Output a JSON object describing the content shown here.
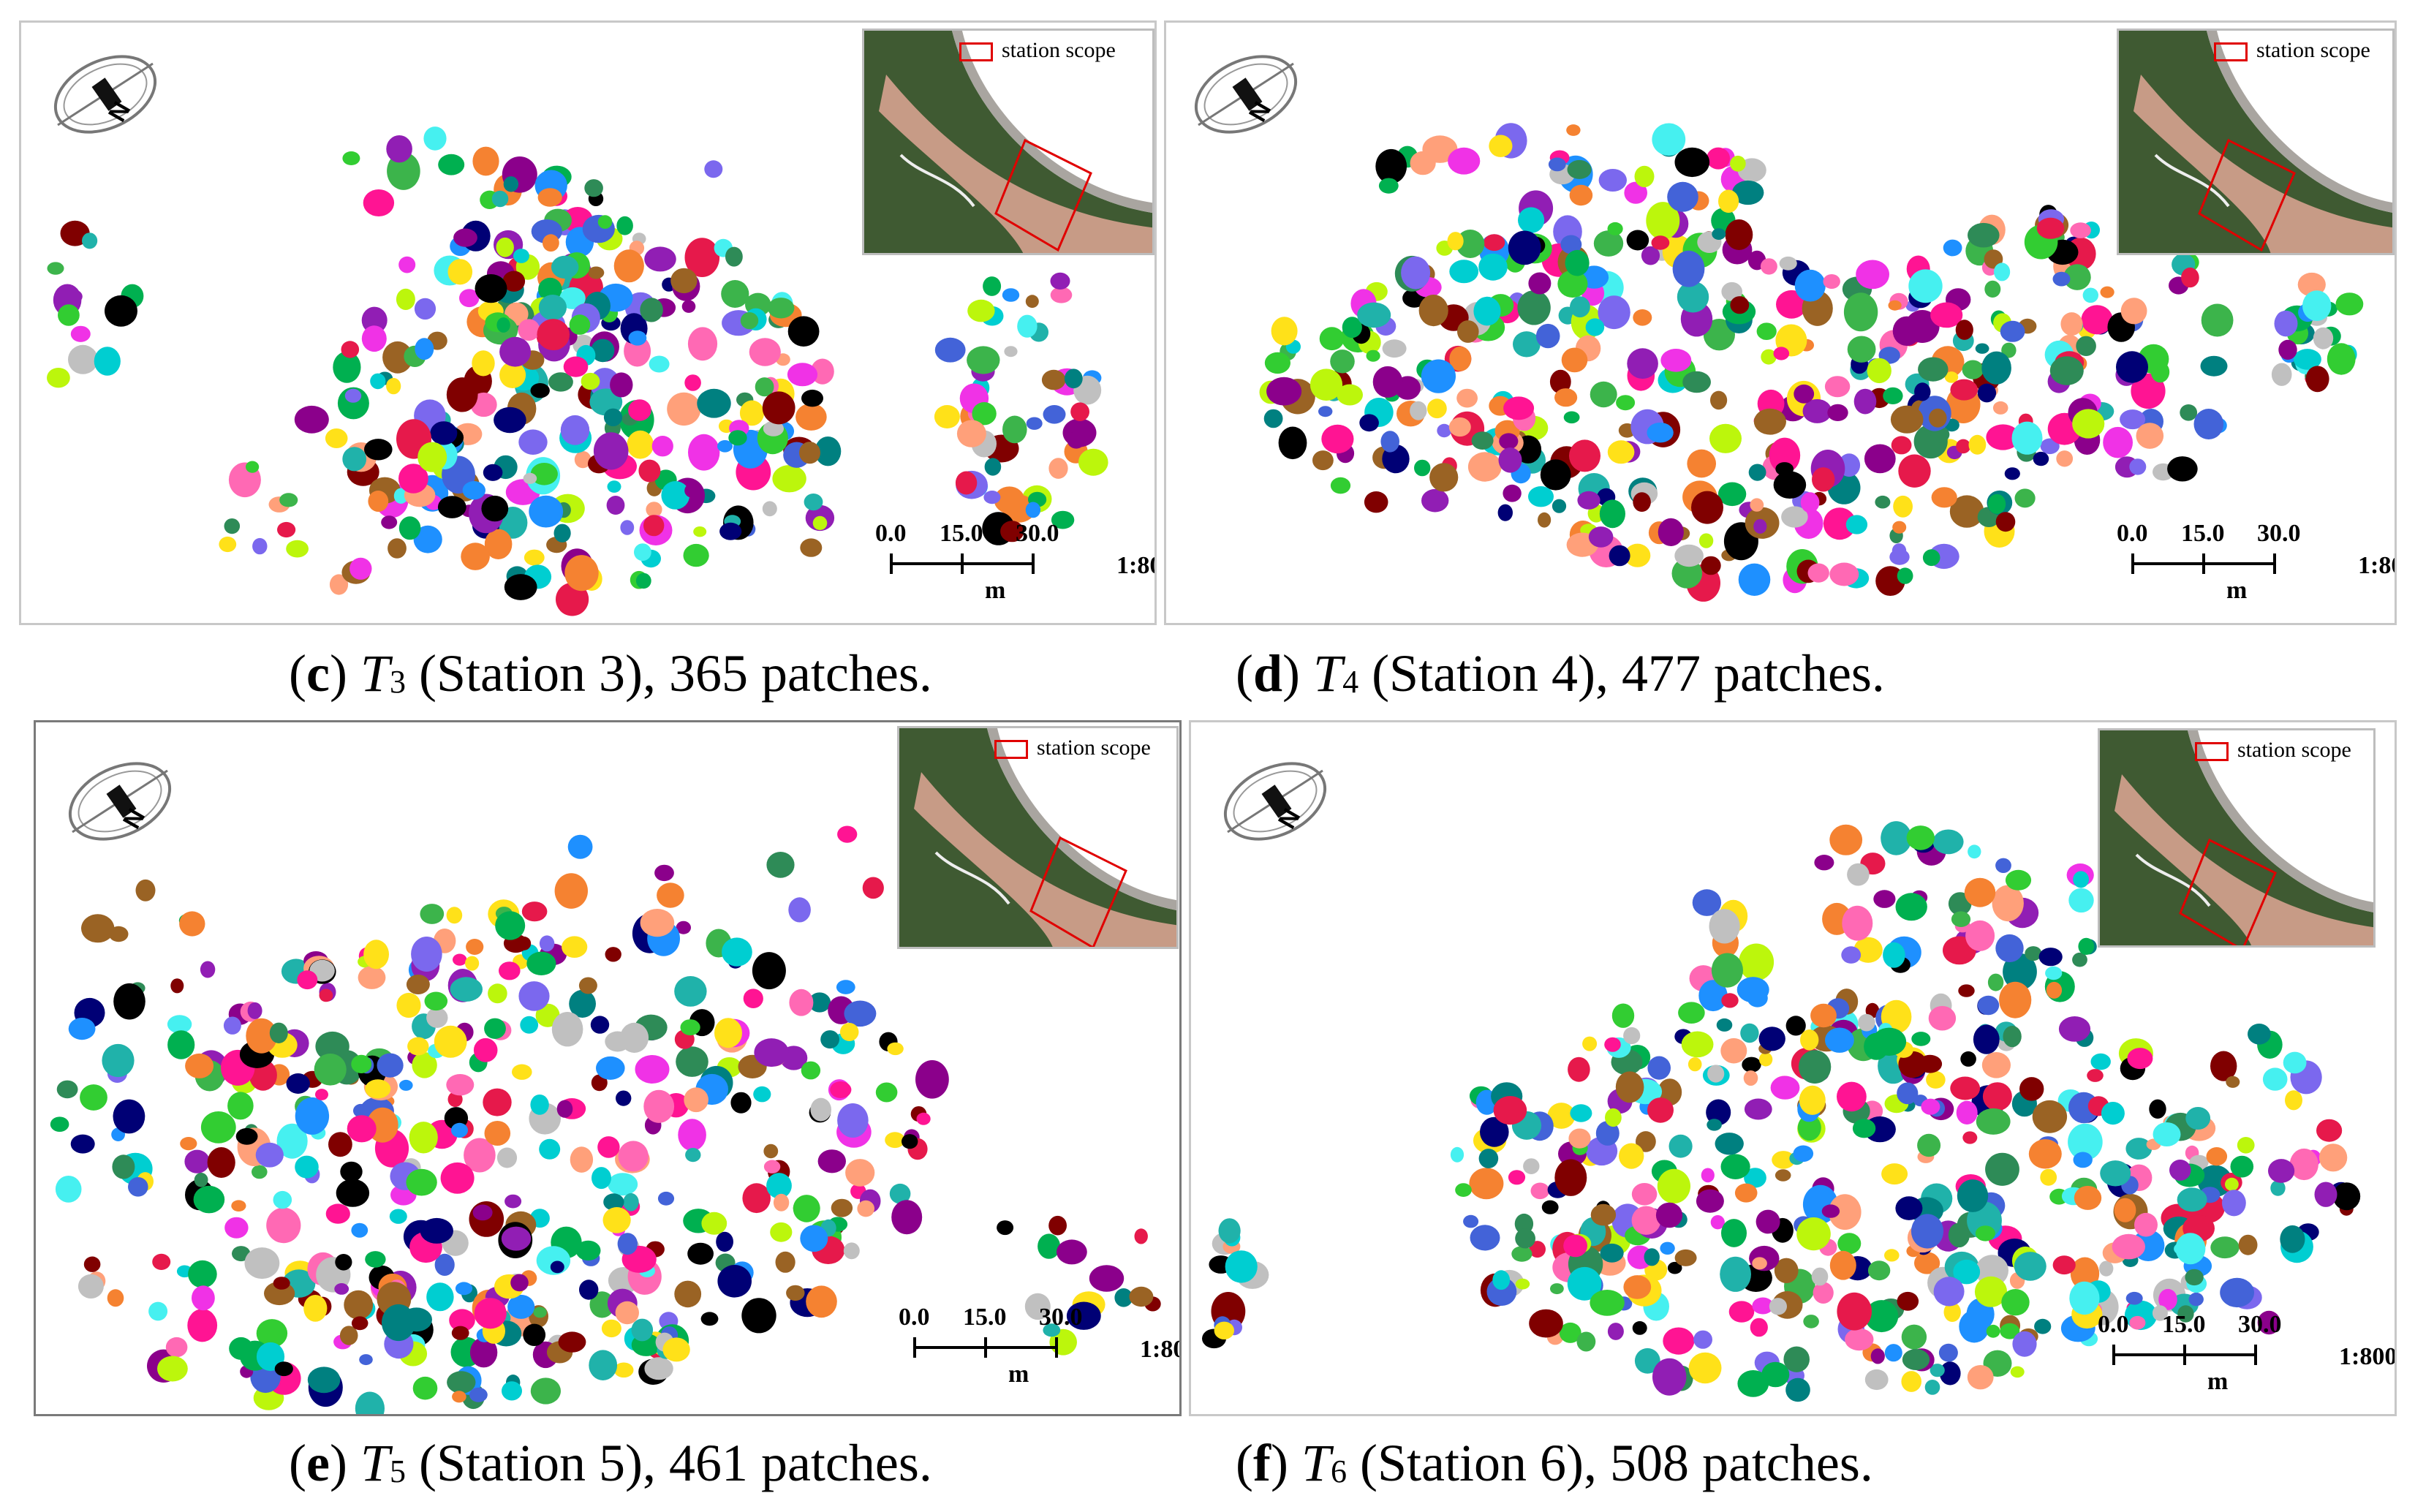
{
  "legend_label": "station scope",
  "scale": {
    "ticks": [
      "0.0",
      "15.0",
      "30.0"
    ],
    "unit": "m",
    "ratio": "1:800"
  },
  "north_label": "N",
  "colors": {
    "palette": [
      "#e6194b",
      "#3cb44b",
      "#ffe119",
      "#4363d8",
      "#f58231",
      "#911eb4",
      "#46f0f0",
      "#f032e6",
      "#bcf60c",
      "#008080",
      "#9a6324",
      "#800000",
      "#000075",
      "#00b050",
      "#ff69b4",
      "#20b2aa",
      "#1e90ff",
      "#ff1493",
      "#32cd32",
      "#8b008b",
      "#00ced1",
      "#ffa07a",
      "#7b68ee",
      "#2e8b57",
      "#000000",
      "#c0c0c0"
    ],
    "legend_box": "#e00000"
  },
  "panels": [
    {
      "id": "c",
      "letter": "c",
      "t_label": "T",
      "t_sub": "3",
      "caption_rest": " (Station 3), 365 patches.",
      "patches": 365
    },
    {
      "id": "d",
      "letter": "d",
      "t_label": "T",
      "t_sub": "4",
      "caption_rest": " (Station 4), 477 patches.",
      "patches": 477
    },
    {
      "id": "e",
      "letter": "e",
      "t_label": "T",
      "t_sub": "5",
      "caption_rest": " (Station 5), 461 patches.",
      "patches": 461
    },
    {
      "id": "f",
      "letter": "f",
      "t_label": "T",
      "t_sub": "6",
      "caption_rest": " (Station 6), 508 patches.",
      "patches": 508
    }
  ]
}
